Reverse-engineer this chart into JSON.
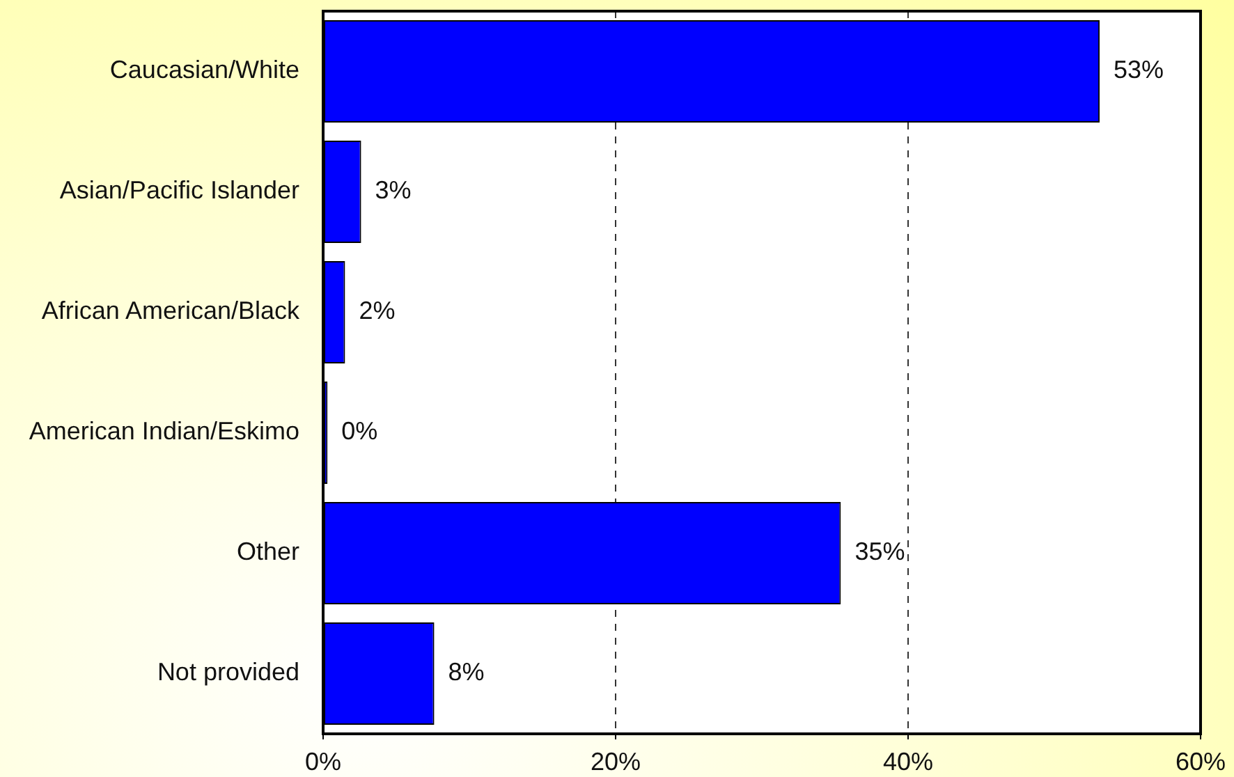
{
  "chart_data": {
    "type": "bar",
    "orientation": "horizontal",
    "categories": [
      "Caucasian/White",
      "Asian/Pacific Islander",
      "African American/Black",
      "American Indian/Eskimo",
      "Other",
      "Not provided"
    ],
    "values": [
      53.1,
      2.6,
      1.5,
      0.3,
      35.4,
      7.6
    ],
    "color": "#0000ff",
    "value_labels": [
      "53%",
      "3%",
      "2%",
      "0%",
      "35%",
      "8%"
    ],
    "xlim": [
      0,
      60
    ],
    "xticks": [
      {
        "value": 0,
        "label": "0%"
      },
      {
        "value": 20,
        "label": "20%"
      },
      {
        "value": 40,
        "label": "40%"
      },
      {
        "value": 60,
        "label": "60%"
      }
    ],
    "grid": "x"
  }
}
